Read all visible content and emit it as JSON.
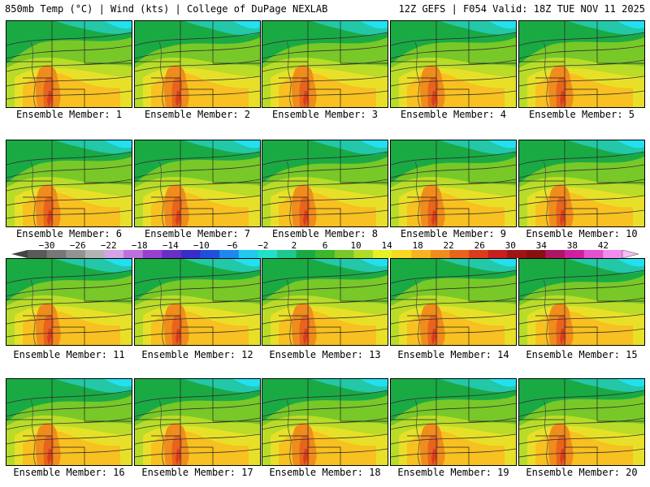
{
  "header": {
    "left_text": "850mb Temp (°C) | Wind (kts) | College of DuPage NEXLAB",
    "right_text": "12Z GEFS | F054 Valid: 18Z TUE NOV 11 2025"
  },
  "panels": [
    {
      "label": "Ensemble Member: 1"
    },
    {
      "label": "Ensemble Member: 2"
    },
    {
      "label": "Ensemble Member: 3"
    },
    {
      "label": "Ensemble Member: 4"
    },
    {
      "label": "Ensemble Member: 5"
    },
    {
      "label": "Ensemble Member: 6"
    },
    {
      "label": "Ensemble Member: 7"
    },
    {
      "label": "Ensemble Member: 8"
    },
    {
      "label": "Ensemble Member: 9"
    },
    {
      "label": "Ensemble Member: 10"
    },
    {
      "label": "Ensemble Member: 11"
    },
    {
      "label": "Ensemble Member: 12"
    },
    {
      "label": "Ensemble Member: 13"
    },
    {
      "label": "Ensemble Member: 14"
    },
    {
      "label": "Ensemble Member: 15"
    },
    {
      "label": "Ensemble Member: 16"
    },
    {
      "label": "Ensemble Member: 17"
    },
    {
      "label": "Ensemble Member: 18"
    },
    {
      "label": "Ensemble Member: 19"
    },
    {
      "label": "Ensemble Member: 20"
    }
  ],
  "colorbar": {
    "ticks": [
      "−30",
      "−26",
      "−22",
      "−18",
      "−14",
      "−10",
      "−6",
      "−2",
      "2",
      "6",
      "10",
      "14",
      "18",
      "22",
      "26",
      "30",
      "34",
      "38",
      "42"
    ],
    "colors": [
      "#5a5a5a",
      "#777777",
      "#939393",
      "#b3b3b3",
      "#d6a3e6",
      "#c070dc",
      "#9a3fd0",
      "#6a2fc8",
      "#3a2cc8",
      "#2050dc",
      "#1e88f0",
      "#22c8f0",
      "#22e0c8",
      "#1ec890",
      "#1aaa44",
      "#3cb82a",
      "#78c828",
      "#b0dc28",
      "#e8f028",
      "#f8d820",
      "#f8b420",
      "#f08c1c",
      "#e8641c",
      "#dc3c1c",
      "#c81e1e",
      "#a01414",
      "#8a1010",
      "#b01464",
      "#d01ea0",
      "#e650d0",
      "#f08cf0"
    ],
    "accent_colors": {
      "cold": "#00d8f0",
      "green": "#1e9e2c",
      "warm": "#f08c1c",
      "hot": "#e02020"
    }
  }
}
